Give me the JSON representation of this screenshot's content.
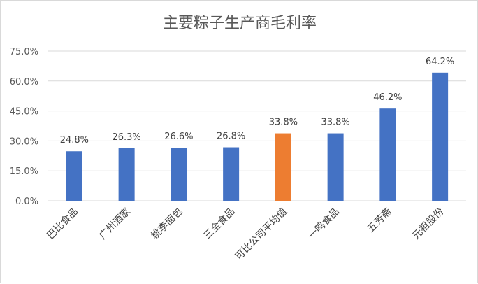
{
  "chart_data": {
    "type": "bar",
    "title": "主要粽子生产商毛利率",
    "categories": [
      "巴比食品",
      "广州酒家",
      "桃李面包",
      "三全食品",
      "可比公司平均值",
      "一鸣食品",
      "五芳斋",
      "元祖股份"
    ],
    "values": [
      24.8,
      26.3,
      26.6,
      26.8,
      33.8,
      33.8,
      46.2,
      64.2
    ],
    "data_labels": [
      "24.8%",
      "26.3%",
      "26.6%",
      "26.8%",
      "33.8%",
      "33.8%",
      "46.2%",
      "64.2%"
    ],
    "highlight_index": 4,
    "y_ticks": [
      "0.0%",
      "15.0%",
      "30.0%",
      "45.0%",
      "60.0%",
      "75.0%"
    ],
    "ylim": [
      0,
      75
    ],
    "grid": true,
    "legend": "none",
    "colors": {
      "bar": "#4472C4",
      "highlight": "#ED7D31",
      "grid": "#d9d9d9"
    }
  }
}
